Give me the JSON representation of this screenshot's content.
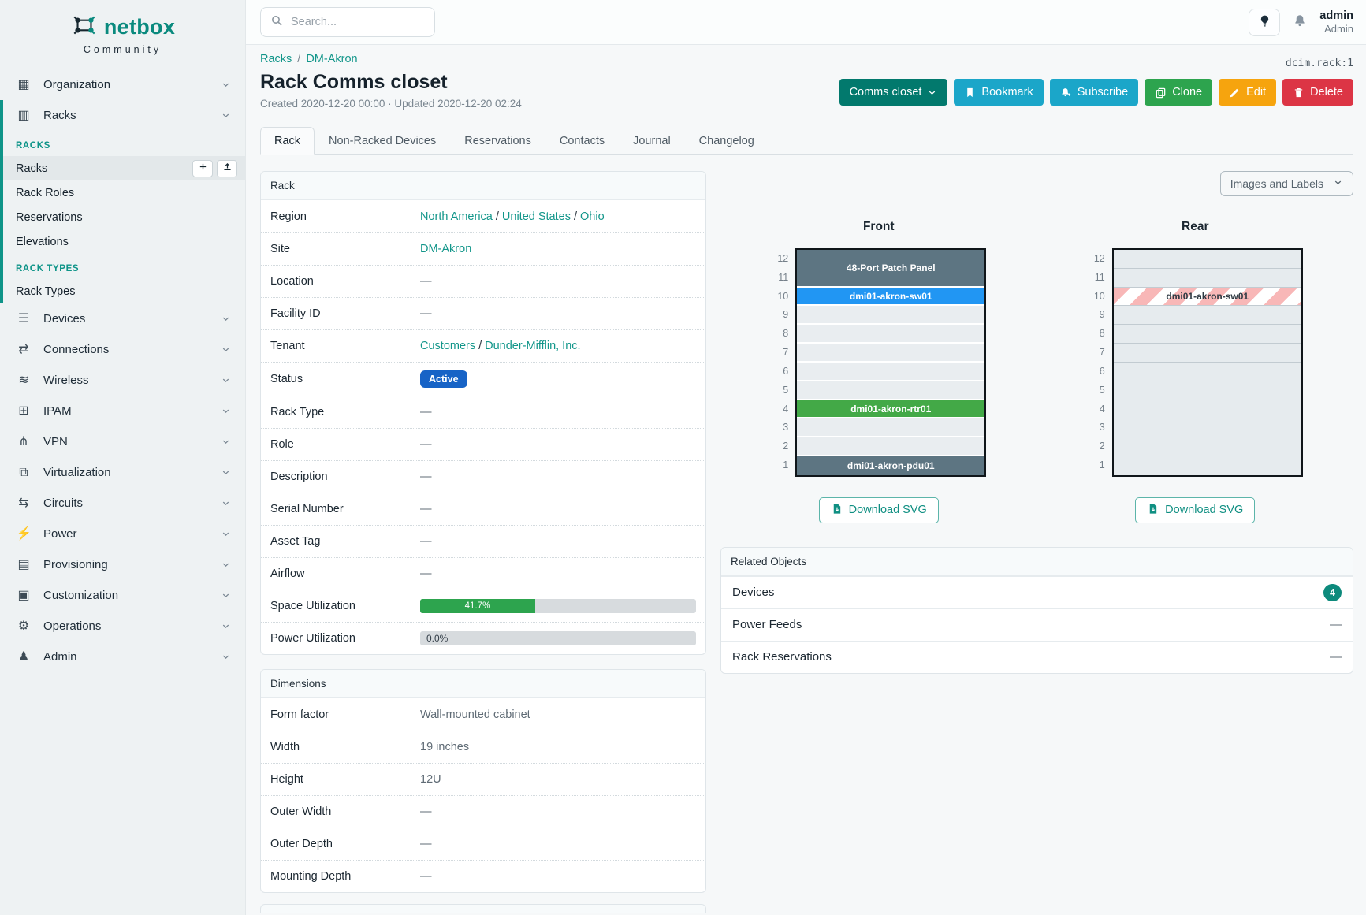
{
  "colors": {
    "brand_teal": "#0a8a7e",
    "link_teal": "#12968a",
    "button_context": "#02796d",
    "button_info": "#1ba6c9",
    "button_success": "#2da44e",
    "button_warning": "#f6a40e",
    "button_danger": "#dc3545",
    "badge_active": "#1763c6",
    "utilization_green": "#2da44e",
    "device_slate": "#5d7582",
    "device_blue": "#2196f3",
    "device_green": "#43a947",
    "count_badge": "#0d8a7c"
  },
  "brand": {
    "name": "netbox",
    "tagline": "Community"
  },
  "topbar": {
    "search_placeholder": "Search...",
    "user": {
      "name": "admin",
      "role": "Admin"
    }
  },
  "sidebar": {
    "organization": {
      "label": "Organization",
      "icon": "organization-icon"
    },
    "racks": {
      "label": "Racks",
      "icon": "racks-icon"
    },
    "sections": [
      {
        "header": "RACKS",
        "items": [
          {
            "label": "Racks",
            "active": true,
            "actions": [
              {
                "icon": "plus-icon",
                "name": "add-rack-button"
              },
              {
                "icon": "import-icon",
                "name": "import-racks-button"
              }
            ]
          },
          {
            "label": "Rack Roles"
          },
          {
            "label": "Reservations"
          },
          {
            "label": "Elevations"
          }
        ]
      },
      {
        "header": "RACK TYPES",
        "items": [
          {
            "label": "Rack Types"
          }
        ]
      }
    ],
    "items": [
      {
        "label": "Devices",
        "icon": "devices-icon"
      },
      {
        "label": "Connections",
        "icon": "connections-icon"
      },
      {
        "label": "Wireless",
        "icon": "wireless-icon"
      },
      {
        "label": "IPAM",
        "icon": "ipam-icon"
      },
      {
        "label": "VPN",
        "icon": "vpn-icon"
      },
      {
        "label": "Virtualization",
        "icon": "virtualization-icon"
      },
      {
        "label": "Circuits",
        "icon": "circuits-icon"
      },
      {
        "label": "Power",
        "icon": "power-icon"
      },
      {
        "label": "Provisioning",
        "icon": "provisioning-icon"
      },
      {
        "label": "Customization",
        "icon": "customization-icon"
      },
      {
        "label": "Operations",
        "icon": "operations-icon"
      },
      {
        "label": "Admin",
        "icon": "admin-icon"
      }
    ]
  },
  "page": {
    "object_id": "dcim.rack:1",
    "breadcrumb": [
      {
        "label": "Racks"
      },
      {
        "label": "DM-Akron"
      }
    ],
    "title": "Rack Comms closet",
    "meta": "Created 2020-12-20 00:00 · Updated 2020-12-20 02:24",
    "actions": [
      {
        "label": "Comms closet",
        "style": "context",
        "caret": true
      },
      {
        "label": "Bookmark",
        "style": "info",
        "icon": "bookmark-icon"
      },
      {
        "label": "Subscribe",
        "style": "info",
        "icon": "bell-plus-icon"
      },
      {
        "label": "Clone",
        "style": "success",
        "icon": "copy-icon"
      },
      {
        "label": "Edit",
        "style": "warning",
        "icon": "pencil-icon"
      },
      {
        "label": "Delete",
        "style": "danger",
        "icon": "trash-icon"
      }
    ],
    "tabs": [
      {
        "label": "Rack",
        "active": true
      },
      {
        "label": "Non-Racked Devices"
      },
      {
        "label": "Reservations"
      },
      {
        "label": "Contacts"
      },
      {
        "label": "Journal"
      },
      {
        "label": "Changelog"
      }
    ]
  },
  "rack_panel": {
    "title": "Rack",
    "rows": [
      {
        "label": "Region",
        "links": [
          "North America",
          "United States",
          "Ohio"
        ]
      },
      {
        "label": "Site",
        "links": [
          "DM-Akron"
        ]
      },
      {
        "label": "Location",
        "value": "—"
      },
      {
        "label": "Facility ID",
        "value": "—"
      },
      {
        "label": "Tenant",
        "links": [
          "Customers",
          "Dunder-Mifflin, Inc."
        ]
      },
      {
        "label": "Status",
        "badge": "Active"
      },
      {
        "label": "Rack Type",
        "value": "—"
      },
      {
        "label": "Role",
        "value": "—"
      },
      {
        "label": "Description",
        "value": "—"
      },
      {
        "label": "Serial Number",
        "value": "—"
      },
      {
        "label": "Asset Tag",
        "value": "—"
      },
      {
        "label": "Airflow",
        "value": "—"
      },
      {
        "label": "Space Utilization",
        "bar": {
          "percent": 41.7,
          "label": "41.7%"
        }
      },
      {
        "label": "Power Utilization",
        "bar": {
          "percent": 0.0,
          "label": "0.0%"
        }
      }
    ]
  },
  "dimensions_panel": {
    "title": "Dimensions",
    "rows": [
      {
        "label": "Form factor",
        "value": "Wall-mounted cabinet"
      },
      {
        "label": "Width",
        "value": "19 inches"
      },
      {
        "label": "Height",
        "value": "12U"
      },
      {
        "label": "Outer Width",
        "value": "—"
      },
      {
        "label": "Outer Depth",
        "value": "—"
      },
      {
        "label": "Mounting Depth",
        "value": "—"
      }
    ]
  },
  "elevations": {
    "view_selector": "Images and Labels",
    "download_label": "Download SVG",
    "unit_count": 12,
    "front": {
      "title": "Front",
      "devices": [
        {
          "name": "48-Port Patch Panel",
          "top_unit": 12,
          "u_height": 2,
          "color_key": "slate"
        },
        {
          "name": "dmi01-akron-sw01",
          "top_unit": 10,
          "u_height": 1,
          "color_key": "blue"
        },
        {
          "name": "dmi01-akron-rtr01",
          "top_unit": 4,
          "u_height": 1,
          "color_key": "green"
        },
        {
          "name": "dmi01-akron-pdu01",
          "top_unit": 1,
          "u_height": 1,
          "color_key": "slate"
        }
      ]
    },
    "rear": {
      "title": "Rear",
      "devices": [
        {
          "name": "dmi01-akron-sw01",
          "top_unit": 10,
          "u_height": 1,
          "color_key": "striped"
        }
      ]
    }
  },
  "related_panel": {
    "title": "Related Objects",
    "rows": [
      {
        "label": "Devices",
        "count": "4"
      },
      {
        "label": "Power Feeds",
        "value": "—"
      },
      {
        "label": "Rack Reservations",
        "value": "—"
      }
    ]
  }
}
